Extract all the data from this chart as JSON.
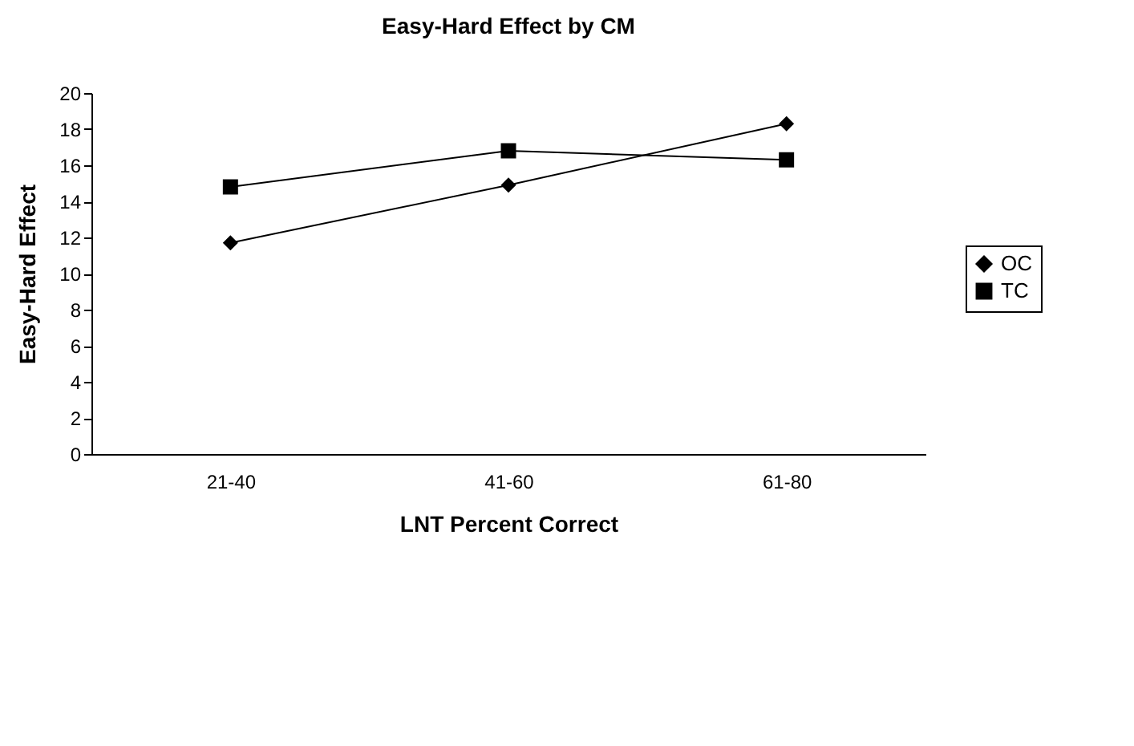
{
  "chart_data": {
    "type": "line",
    "title": "Easy-Hard Effect by CM",
    "xlabel": "LNT Percent Correct",
    "ylabel": "Easy-Hard Effect",
    "categories": [
      "21-40",
      "41-60",
      "61-80"
    ],
    "series": [
      {
        "name": "OC",
        "color": "#000000",
        "marker": "diamond",
        "values": [
          11.7,
          14.9,
          18.3
        ]
      },
      {
        "name": "TC",
        "color": "#000000",
        "marker": "square",
        "values": [
          14.8,
          16.8,
          16.3
        ]
      }
    ],
    "ylim": [
      0,
      20
    ],
    "yticks": [
      0,
      2,
      4,
      6,
      8,
      10,
      12,
      14,
      16,
      18,
      20
    ],
    "grid": false,
    "legend": "right",
    "line_style": "solid"
  }
}
